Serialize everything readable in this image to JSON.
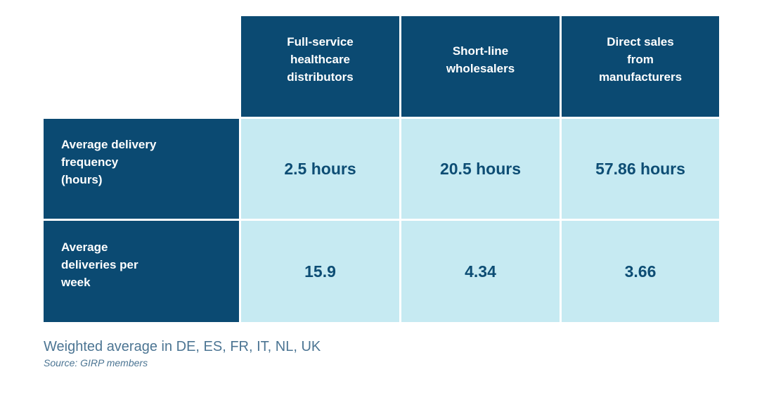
{
  "colors": {
    "dark_blue": "#0b4a72",
    "light_blue": "#c6eaf2",
    "value_text": "#0d4d74",
    "footer_text": "#4c7593"
  },
  "table": {
    "col_headers": [
      "Full-service\nhealthcare\ndistributors",
      "Short-line\nwholesalers",
      "Direct sales\nfrom\nmanufacturers"
    ],
    "rows": [
      {
        "label": "Average delivery\nfrequency\n(hours)",
        "values": [
          "2.5 hours",
          "20.5 hours",
          "57.86 hours"
        ]
      },
      {
        "label": "Average\ndeliveries per\nweek",
        "values": [
          "15.9",
          "4.34",
          "3.66"
        ]
      }
    ]
  },
  "footer": {
    "note": "Weighted average in DE, ES, FR, IT, NL, UK",
    "source": "Source: GIRP members"
  },
  "chart_data": {
    "type": "table",
    "columns": [
      "Full-service healthcare distributors",
      "Short-line wholesalers",
      "Direct sales from manufacturers"
    ],
    "rows": [
      {
        "label": "Average delivery frequency (hours)",
        "values": [
          2.5,
          20.5,
          57.86
        ],
        "unit": "hours"
      },
      {
        "label": "Average deliveries per week",
        "values": [
          15.9,
          4.34,
          3.66
        ],
        "unit": "deliveries/week"
      }
    ],
    "note": "Weighted average in DE, ES, FR, IT, NL, UK",
    "source": "Source: GIRP members"
  }
}
